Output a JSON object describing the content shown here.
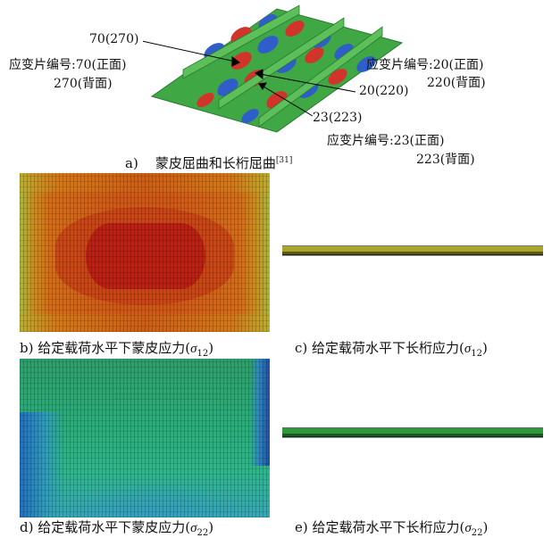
{
  "annotations": {
    "label_70": "70(270)",
    "gauge_70_line1": "应变片编号:70(正面)",
    "gauge_70_line2": "270(背面)",
    "gauge_20_line1": "应变片编号:20(正面)",
    "gauge_20_line2": "220(背面)",
    "label_20": "20(220)",
    "label_23": "23(223)",
    "gauge_23_line1": "应变片编号:23(正面)",
    "gauge_23_line2": "223(背面)"
  },
  "captions": {
    "a_prefix": "a)",
    "a_text": "蒙皮屈曲和长桁屈曲",
    "a_ref": "[31]",
    "b_text": "b) 给定载荷水平下蒙皮应力(",
    "c_text": "c) 给定载荷水平下长桁应力(",
    "d_text": "d) 给定载荷水平下蒙皮应力(",
    "e_text": "e) 给定载荷水平下长桁应力(",
    "sigma": "σ",
    "sub12": "12",
    "sub22": "22",
    "close": ")"
  },
  "colors": {
    "buckle_red": "#d0342a",
    "buckle_blue": "#2f5ec8",
    "panel_green": "#3fa844",
    "stress_high": "#c01e10",
    "stress_low": "#1e4fa8"
  }
}
